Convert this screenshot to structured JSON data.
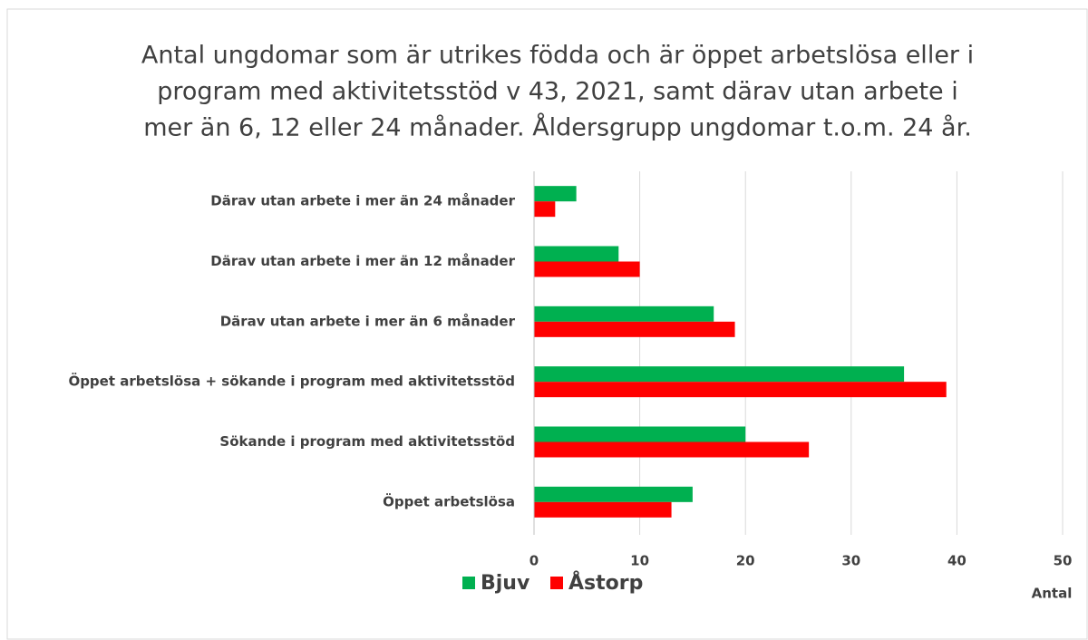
{
  "chart_data": {
    "type": "bar",
    "orientation": "horizontal",
    "title": [
      "Antal ungdomar som är utrikes födda och är öppet arbetslösa eller i",
      "program med aktivitetsstöd v 43, 2021, samt därav utan arbete i",
      "mer än 6, 12 eller 24 månader. Åldersgrupp ungdomar t.o.m. 24 år."
    ],
    "x_label": "Antal",
    "categories": [
      "Därav utan arbete i mer än 24 månader",
      "Därav utan arbete i mer än 12 månader",
      "Därav  utan arbete i mer än 6 månader",
      "Öppet arbetslösa + sökande i program med aktivitetsstöd",
      "Sökande i program med aktivitetsstöd",
      "Öppet arbetslösa"
    ],
    "series": [
      {
        "name": "Bjuv",
        "color": "#00b050",
        "values": [
          4,
          8,
          17,
          35,
          20,
          15
        ]
      },
      {
        "name": "Åstorp",
        "color": "#ff0000",
        "values": [
          2,
          10,
          19,
          39,
          26,
          13
        ]
      }
    ],
    "xlim": [
      0,
      50
    ],
    "xticks": [
      0,
      10,
      20,
      30,
      40,
      50
    ],
    "grid": true,
    "legend": "bottom"
  }
}
